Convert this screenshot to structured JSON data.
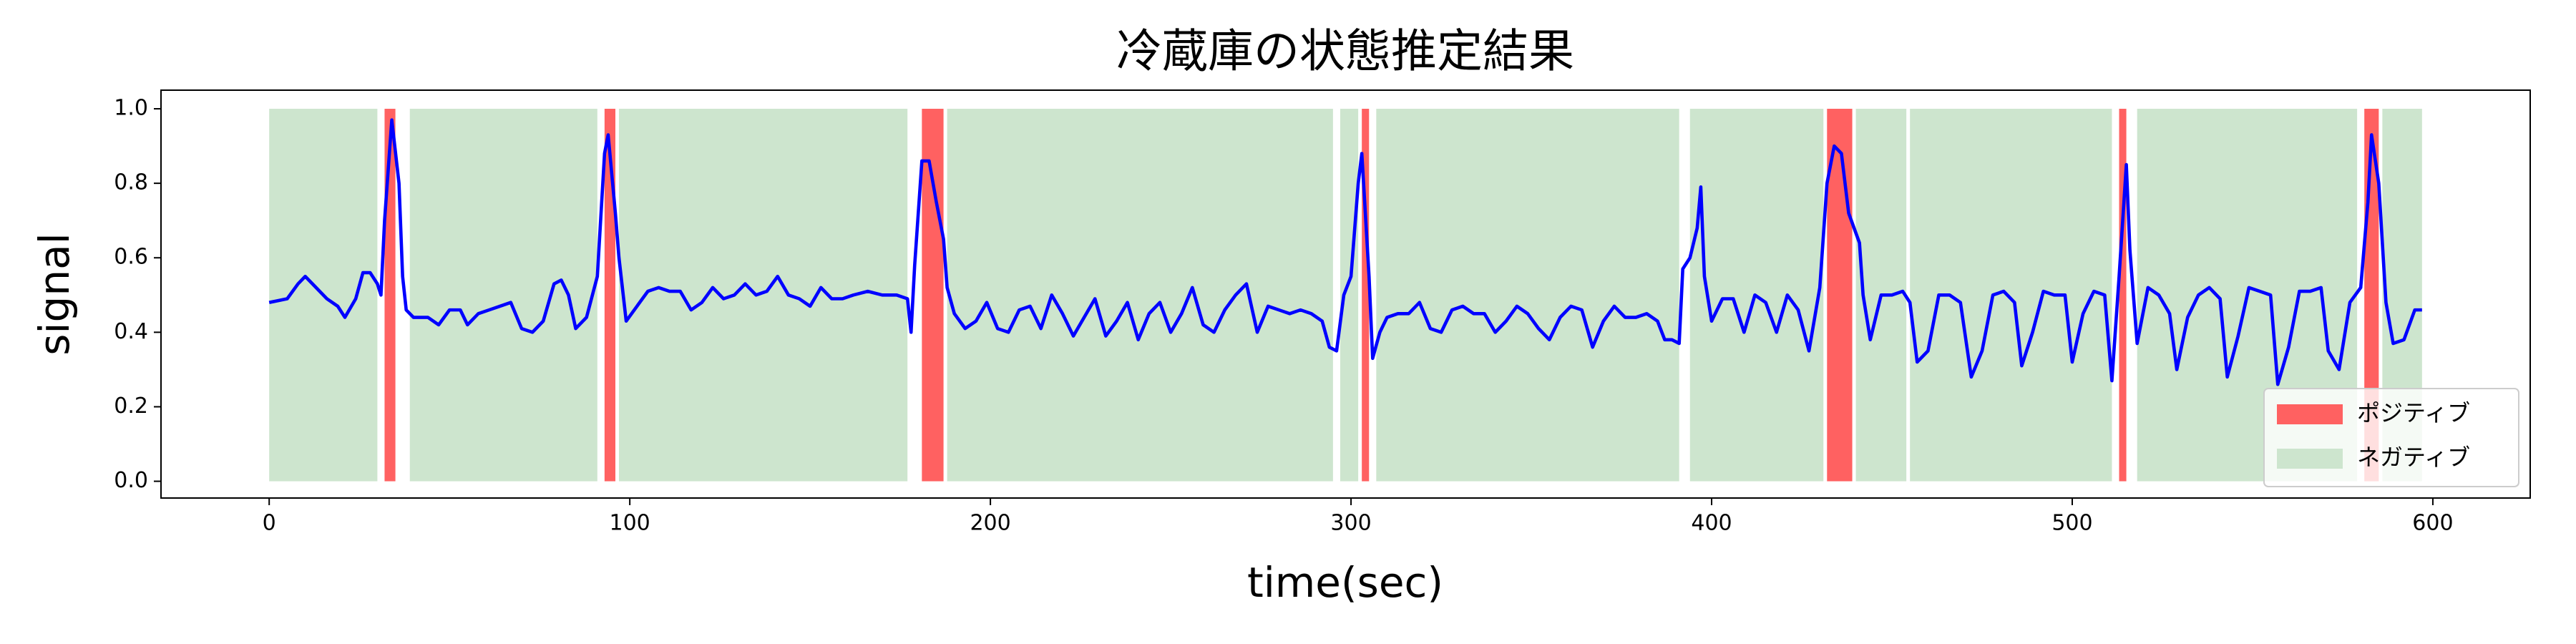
{
  "chart_data": {
    "type": "line",
    "title": "冷蔵庫の状態推定結果",
    "xlabel": "time(sec)",
    "ylabel": "signal",
    "color": "#0000ff",
    "x": [
      0,
      5,
      8,
      10,
      13,
      16,
      19,
      21,
      24,
      26,
      28,
      30,
      31,
      32,
      34,
      36,
      37,
      38,
      40,
      44,
      47,
      50,
      53,
      55,
      58,
      61,
      64,
      67,
      70,
      73,
      76,
      79,
      81,
      83,
      85,
      88,
      91,
      93,
      94,
      96,
      97,
      99,
      102,
      105,
      108,
      111,
      114,
      117,
      120,
      123,
      126,
      129,
      132,
      135,
      138,
      141,
      144,
      147,
      150,
      153,
      156,
      159,
      162,
      166,
      170,
      174,
      177,
      178,
      179,
      181,
      183,
      185,
      187,
      188,
      190,
      193,
      196,
      199,
      202,
      205,
      208,
      211,
      214,
      217,
      220,
      223,
      226,
      229,
      232,
      235,
      238,
      241,
      244,
      247,
      250,
      253,
      256,
      259,
      262,
      265,
      268,
      271,
      274,
      277,
      280,
      283,
      286,
      289,
      292,
      294,
      296,
      298,
      300,
      302,
      303,
      305,
      306,
      308,
      310,
      313,
      316,
      319,
      322,
      325,
      328,
      331,
      334,
      337,
      340,
      343,
      346,
      349,
      352,
      355,
      358,
      361,
      364,
      367,
      370,
      373,
      376,
      379,
      382,
      385,
      387,
      389,
      391,
      392,
      394,
      396,
      397,
      398,
      400,
      403,
      406,
      409,
      412,
      415,
      418,
      421,
      424,
      427,
      430,
      432,
      434,
      436,
      438,
      441,
      442,
      444,
      447,
      450,
      453,
      455,
      457,
      460,
      463,
      466,
      469,
      472,
      475,
      478,
      481,
      484,
      486,
      489,
      492,
      495,
      498,
      500,
      503,
      506,
      509,
      511,
      513,
      515,
      516,
      518,
      521,
      524,
      527,
      529,
      532,
      535,
      538,
      541,
      543,
      546,
      549,
      552,
      555,
      557,
      560,
      563,
      566,
      569,
      571,
      574,
      577,
      580,
      582,
      583,
      585,
      587,
      589,
      592,
      595,
      597
    ],
    "values": [
      0.48,
      0.49,
      0.53,
      0.55,
      0.52,
      0.49,
      0.47,
      0.44,
      0.49,
      0.56,
      0.56,
      0.53,
      0.5,
      0.7,
      0.97,
      0.8,
      0.55,
      0.46,
      0.44,
      0.44,
      0.42,
      0.46,
      0.46,
      0.42,
      0.45,
      0.46,
      0.47,
      0.48,
      0.41,
      0.4,
      0.43,
      0.53,
      0.54,
      0.5,
      0.41,
      0.44,
      0.55,
      0.88,
      0.93,
      0.72,
      0.6,
      0.43,
      0.47,
      0.51,
      0.52,
      0.51,
      0.51,
      0.46,
      0.48,
      0.52,
      0.49,
      0.5,
      0.53,
      0.5,
      0.51,
      0.55,
      0.5,
      0.49,
      0.47,
      0.52,
      0.49,
      0.49,
      0.5,
      0.51,
      0.5,
      0.5,
      0.49,
      0.4,
      0.58,
      0.86,
      0.86,
      0.75,
      0.65,
      0.52,
      0.45,
      0.41,
      0.43,
      0.48,
      0.41,
      0.4,
      0.46,
      0.47,
      0.41,
      0.5,
      0.45,
      0.39,
      0.44,
      0.49,
      0.39,
      0.43,
      0.48,
      0.38,
      0.45,
      0.48,
      0.4,
      0.45,
      0.52,
      0.42,
      0.4,
      0.46,
      0.5,
      0.53,
      0.4,
      0.47,
      0.46,
      0.45,
      0.46,
      0.45,
      0.43,
      0.36,
      0.35,
      0.5,
      0.55,
      0.8,
      0.88,
      0.55,
      0.33,
      0.4,
      0.44,
      0.45,
      0.45,
      0.48,
      0.41,
      0.4,
      0.46,
      0.47,
      0.45,
      0.45,
      0.4,
      0.43,
      0.47,
      0.45,
      0.41,
      0.38,
      0.44,
      0.47,
      0.46,
      0.36,
      0.43,
      0.47,
      0.44,
      0.44,
      0.45,
      0.43,
      0.38,
      0.38,
      0.37,
      0.57,
      0.6,
      0.68,
      0.79,
      0.55,
      0.43,
      0.49,
      0.49,
      0.4,
      0.5,
      0.48,
      0.4,
      0.5,
      0.46,
      0.35,
      0.52,
      0.8,
      0.9,
      0.88,
      0.72,
      0.64,
      0.5,
      0.38,
      0.5,
      0.5,
      0.51,
      0.48,
      0.32,
      0.35,
      0.5,
      0.5,
      0.48,
      0.28,
      0.35,
      0.5,
      0.51,
      0.48,
      0.31,
      0.4,
      0.51,
      0.5,
      0.5,
      0.32,
      0.45,
      0.51,
      0.5,
      0.27,
      0.55,
      0.85,
      0.62,
      0.37,
      0.52,
      0.5,
      0.45,
      0.3,
      0.44,
      0.5,
      0.52,
      0.49,
      0.28,
      0.39,
      0.52,
      0.51,
      0.5,
      0.26,
      0.36,
      0.51,
      0.51,
      0.52,
      0.35,
      0.3,
      0.48,
      0.52,
      0.75,
      0.93,
      0.8,
      0.48,
      0.37,
      0.38,
      0.46,
      0.46
    ],
    "span_range": [
      0,
      1
    ],
    "spans": [
      {
        "name": "ポジティブ",
        "color": "#ff6161",
        "ranges": [
          [
            32,
            35
          ],
          [
            93,
            96
          ],
          [
            181,
            187
          ],
          [
            303,
            305
          ],
          [
            432,
            439
          ],
          [
            513,
            515
          ],
          [
            581,
            585
          ]
        ]
      },
      {
        "name": "ネガティブ",
        "color": "#cde5ce",
        "ranges": [
          [
            0,
            30
          ],
          [
            39,
            91
          ],
          [
            97,
            177
          ],
          [
            188,
            295
          ],
          [
            297,
            302
          ],
          [
            307,
            391
          ],
          [
            394,
            431
          ],
          [
            440,
            454
          ],
          [
            455,
            511
          ],
          [
            518,
            579
          ],
          [
            586,
            597
          ]
        ]
      }
    ],
    "xlim": [
      -30,
      627
    ],
    "ylim": [
      -0.045,
      1.05
    ],
    "xticks": [
      0,
      100,
      200,
      300,
      400,
      500,
      600
    ],
    "yticks": [
      {
        "value": 0,
        "label": "0.0"
      },
      {
        "value": 0.2,
        "label": "0.2"
      },
      {
        "value": 0.4,
        "label": "0.4"
      },
      {
        "value": 0.6,
        "label": "0.6"
      },
      {
        "value": 0.8,
        "label": "0.8"
      },
      {
        "value": 1,
        "label": "1.0"
      }
    ],
    "legend": "lower right"
  }
}
